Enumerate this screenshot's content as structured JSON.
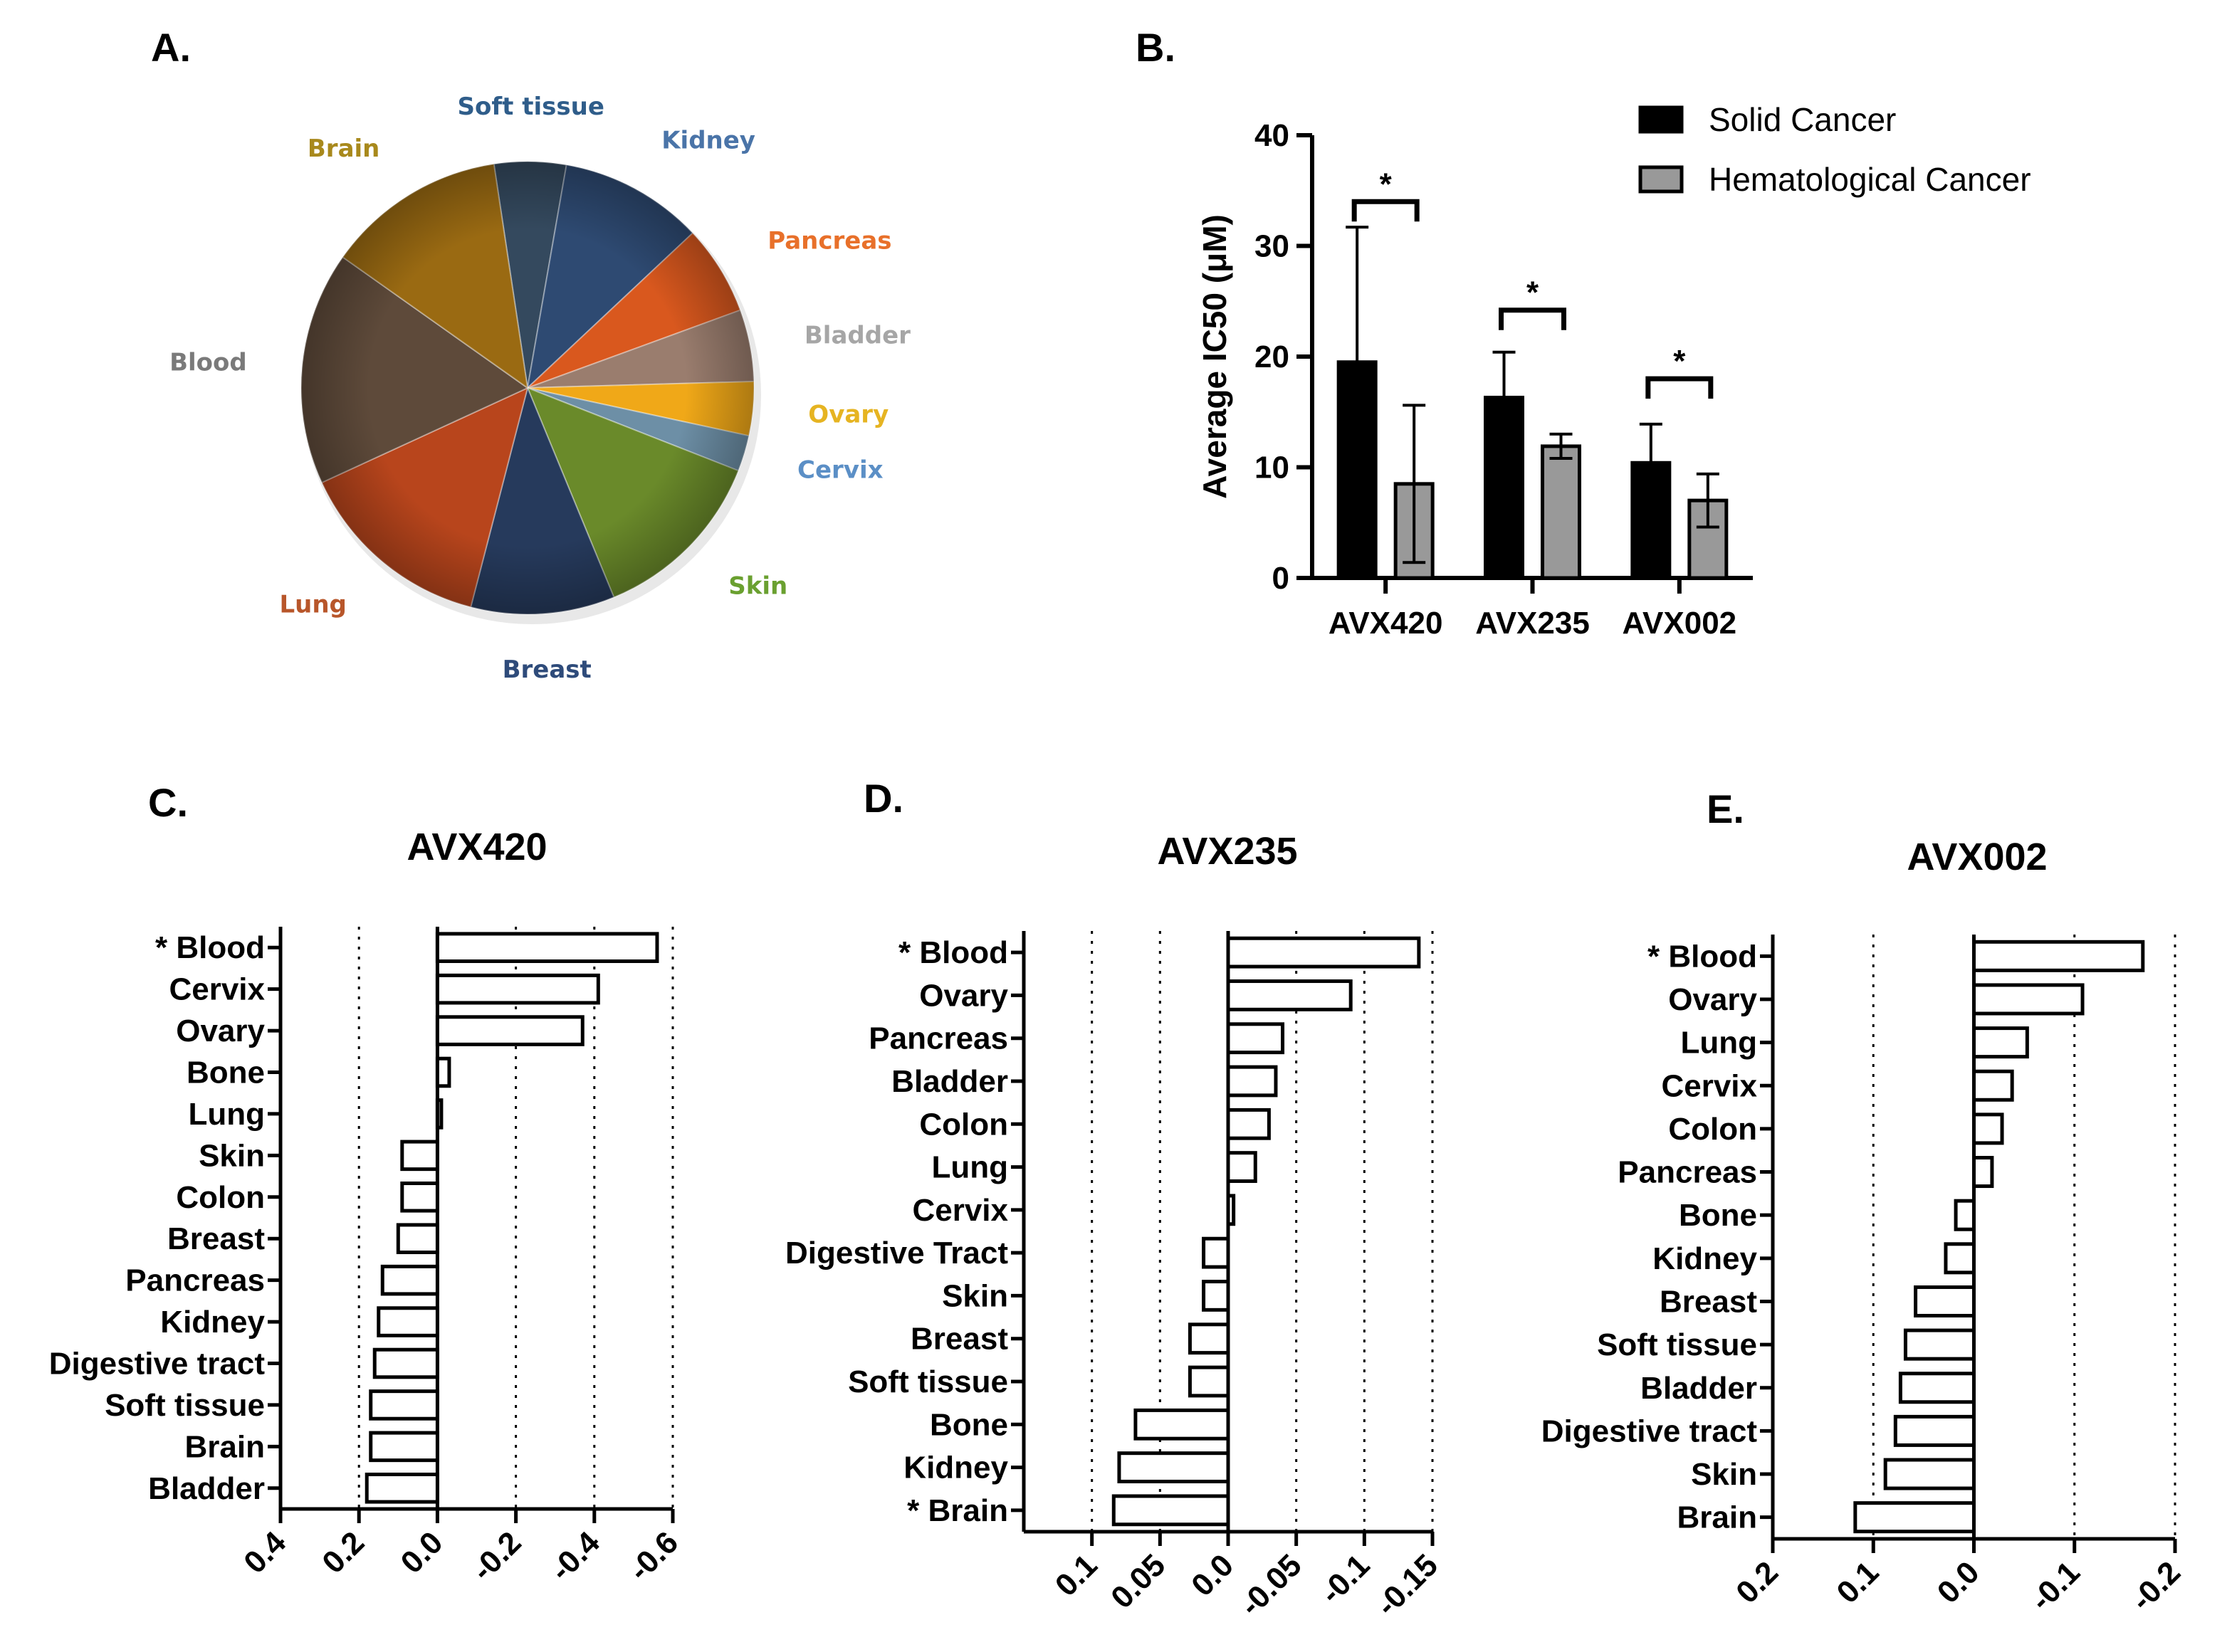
{
  "panels": {
    "a": {
      "letter": "A."
    },
    "b": {
      "letter": "B."
    },
    "c": {
      "letter": "C."
    },
    "d": {
      "letter": "D."
    },
    "e": {
      "letter": "E."
    }
  },
  "chart_data": [
    {
      "id": "pie",
      "type": "pie",
      "title": "",
      "slices": [
        {
          "label": "Soft tissue",
          "value": 4,
          "color": "#34495e",
          "label_color": "#2f5d8a"
        },
        {
          "label": "Kidney",
          "value": 8,
          "color": "#2e4a72",
          "label_color": "#4a74a8"
        },
        {
          "label": "Pancreas",
          "value": 5,
          "color": "#d9581e",
          "label_color": "#e8702a"
        },
        {
          "label": "Bladder",
          "value": 4,
          "color": "#9a7d6e",
          "label_color": "#a6a6a6"
        },
        {
          "label": "Ovary",
          "value": 3,
          "color": "#f0a818",
          "label_color": "#e6b422"
        },
        {
          "label": "Cervix",
          "value": 2,
          "color": "#6d8fa6",
          "label_color": "#5b8fc6"
        },
        {
          "label": "Skin",
          "value": 10,
          "color": "#6a8a2a",
          "label_color": "#6aa030"
        },
        {
          "label": "Breast",
          "value": 8,
          "color": "#263a5c",
          "label_color": "#2e4b7a"
        },
        {
          "label": "Lung",
          "value": 11,
          "color": "#b8451c",
          "label_color": "#b8562a"
        },
        {
          "label": "Blood",
          "value": 13,
          "color": "#5e4a3a",
          "label_color": "#7a7a7a"
        },
        {
          "label": "Brain",
          "value": 10,
          "color": "#9a6a12",
          "label_color": "#a8891c"
        }
      ]
    },
    {
      "id": "ic50",
      "type": "bar",
      "title": "",
      "ylabel": "Average IC50 (μM)",
      "xlabel": "",
      "ylim": [
        0,
        40
      ],
      "yticks": [
        "0",
        "10",
        "20",
        "30",
        "40"
      ],
      "categories": [
        "AVX420",
        "AVX235",
        "AVX002"
      ],
      "series": [
        {
          "name": "Solid Cancer",
          "color": "#000000",
          "values": [
            19.5,
            16.3,
            10.4
          ],
          "errors": [
            12.2,
            4.1,
            3.5
          ]
        },
        {
          "name": "Hematological Cancer",
          "color": "#999999",
          "values": [
            8.5,
            11.9,
            7.0
          ],
          "errors": [
            7.1,
            1.1,
            2.4
          ]
        }
      ],
      "significance": [
        "*",
        "*",
        "*"
      ],
      "legend": "top-right"
    },
    {
      "id": "avx420",
      "type": "bar",
      "orientation": "horizontal",
      "title": "AVX420",
      "xlim": [
        0.4,
        -0.6
      ],
      "xticks": [
        "0.4",
        "0.2",
        "0.0",
        "-0.2",
        "-0.4",
        "-0.6"
      ],
      "categories": [
        "* Blood",
        "Cervix",
        "Ovary",
        "Bone",
        "Lung",
        "Skin",
        "Colon",
        "Breast",
        "Pancreas",
        "Kidney",
        "Digestive tract",
        "Soft tissue",
        "Brain",
        "Bladder"
      ],
      "values": [
        -0.56,
        -0.41,
        -0.37,
        -0.03,
        -0.01,
        0.09,
        0.09,
        0.1,
        0.14,
        0.15,
        0.16,
        0.17,
        0.17,
        0.18
      ]
    },
    {
      "id": "avx235",
      "type": "bar",
      "orientation": "horizontal",
      "title": "AVX235",
      "xlim": [
        0.15,
        -0.15
      ],
      "xticks": [
        "0.1",
        "0.05",
        "0.0",
        "-0.05",
        "-0.1",
        "-0.15"
      ],
      "categories": [
        "* Blood",
        "Ovary",
        "Pancreas",
        "Bladder",
        "Colon",
        "Lung",
        "Cervix",
        "Digestive Tract",
        "Skin",
        "Breast",
        "Soft tissue",
        "Bone",
        "Kidney",
        "* Brain"
      ],
      "values": [
        -0.14,
        -0.09,
        -0.04,
        -0.035,
        -0.03,
        -0.02,
        -0.004,
        0.018,
        0.018,
        0.028,
        0.028,
        0.068,
        0.08,
        0.084
      ]
    },
    {
      "id": "avx002",
      "type": "bar",
      "orientation": "horizontal",
      "title": "AVX002",
      "xlim": [
        0.2,
        -0.2
      ],
      "xticks": [
        "0.2",
        "0.1",
        "0.0",
        "-0.1",
        "-0.2"
      ],
      "categories": [
        "* Blood",
        "Ovary",
        "Lung",
        "Cervix",
        "Colon",
        "Pancreas",
        "Bone",
        "Kidney",
        "Breast",
        "Soft tissue",
        "Bladder",
        "Digestive tract",
        "Skin",
        "Brain"
      ],
      "values": [
        -0.168,
        -0.108,
        -0.053,
        -0.038,
        -0.028,
        -0.018,
        0.018,
        0.028,
        0.058,
        0.068,
        0.073,
        0.078,
        0.088,
        0.118
      ]
    }
  ]
}
